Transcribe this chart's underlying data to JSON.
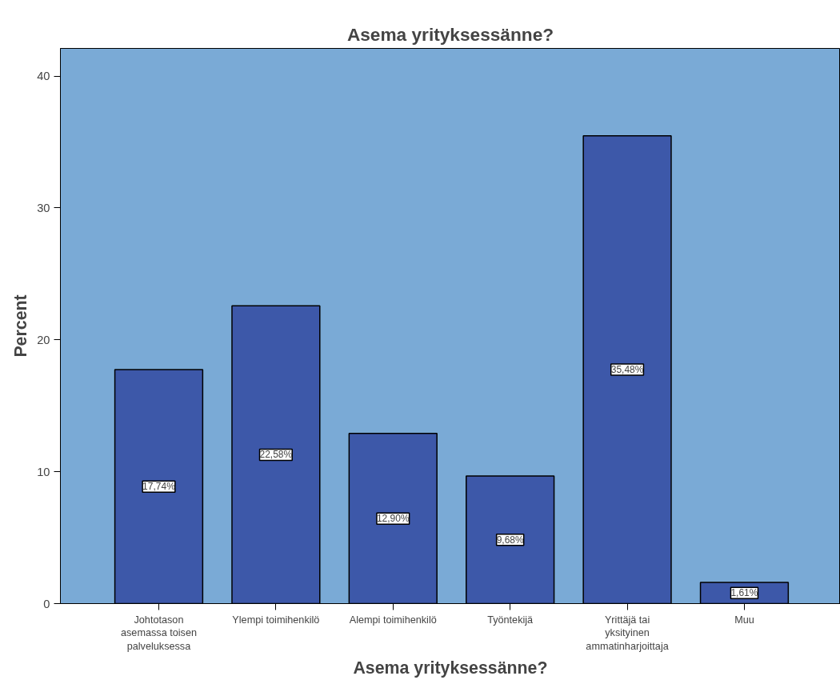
{
  "chart_data": {
    "type": "bar",
    "title": "Asema yrityksessänne?",
    "xlabel": "Asema yrityksessänne?",
    "ylabel": "Percent",
    "categories": [
      "Johtotason\nasemassa toisen\npalveluksessa",
      "Ylempi toimihenkilö",
      "Alempi toimihenkilö",
      "Työntekijä",
      "Yrittäjä tai\nyksityinen\nammatinharjoittaja",
      "Muu"
    ],
    "values": [
      17.74,
      22.58,
      12.9,
      9.68,
      35.48,
      1.61
    ],
    "value_labels": [
      "17,74%",
      "22,58%",
      "12,90%",
      "9,68%",
      "35,48%",
      "1,61%"
    ],
    "color": "#3d58a9",
    "ylim": [
      0,
      42.1
    ],
    "yticks": [
      0,
      10,
      20,
      30,
      40
    ],
    "grid": false
  }
}
